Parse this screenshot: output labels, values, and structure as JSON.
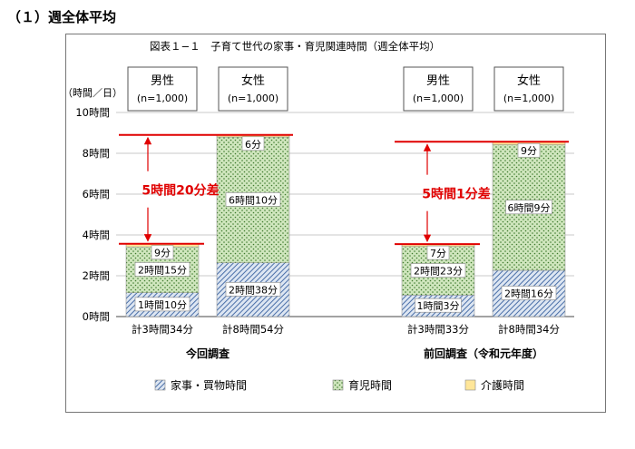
{
  "heading": "（１）週全体平均",
  "chart_data": {
    "type": "bar",
    "stacked": true,
    "title": "図表１−１　子育て世代の家事・育児関連時間（週全体平均）",
    "y_unit_label": "（時間／日）",
    "ylim": [
      0,
      10
    ],
    "y_ticks": [
      {
        "value": 0,
        "label": "0時間"
      },
      {
        "value": 2,
        "label": "2時間"
      },
      {
        "value": 4,
        "label": "4時間"
      },
      {
        "value": 6,
        "label": "6時間"
      },
      {
        "value": 8,
        "label": "8時間"
      },
      {
        "value": 10,
        "label": "10時間"
      }
    ],
    "groups": [
      {
        "label": "今回調査",
        "bars": [
          {
            "gender": "男性",
            "n": "(n=1,000)",
            "total_label": "計3時間34分",
            "values": [
              1.167,
              2.25,
              0.15
            ],
            "value_labels": [
              "1時間10分",
              "2時間15分",
              "9分"
            ]
          },
          {
            "gender": "女性",
            "n": "(n=1,000)",
            "total_label": "計8時間54分",
            "values": [
              2.633,
              6.167,
              0.1
            ],
            "value_labels": [
              "2時間38分",
              "6時間10分",
              "6分"
            ]
          }
        ],
        "difference_label": "5時間20分差"
      },
      {
        "label": "前回調査（令和元年度）",
        "bars": [
          {
            "gender": "男性",
            "n": "(n=1,000)",
            "total_label": "計3時間33分",
            "values": [
              1.05,
              2.383,
              0.117
            ],
            "value_labels": [
              "1時間3分",
              "2時間23分",
              "7分"
            ]
          },
          {
            "gender": "女性",
            "n": "(n=1,000)",
            "total_label": "計8時間34分",
            "values": [
              2.267,
              6.15,
              0.15
            ],
            "value_labels": [
              "2時間16分",
              "6時間9分",
              "9分"
            ]
          }
        ],
        "difference_label": "5時間1分差"
      }
    ],
    "series": [
      {
        "name": "家事・買物時間",
        "pattern": "diagonal-hatch",
        "color": "#5b7fb8"
      },
      {
        "name": "育児時間",
        "pattern": "dots",
        "color": "#c6e0b4"
      },
      {
        "name": "介護時間",
        "pattern": "solid",
        "color": "#ffe699"
      }
    ],
    "legend_position": "bottom",
    "annotation_color": "#e00000"
  }
}
